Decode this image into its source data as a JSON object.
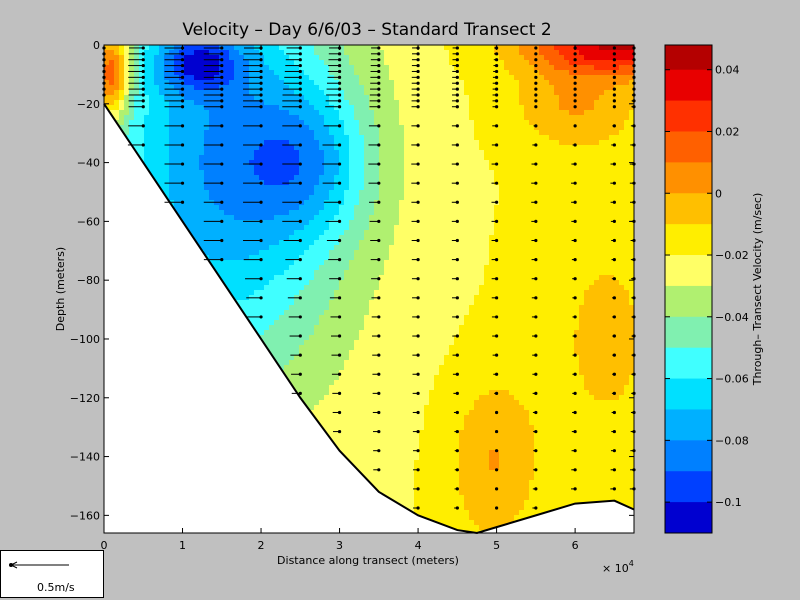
{
  "chart_data": {
    "type": "heatmap",
    "subtype": "filled-contour with velocity vectors",
    "title": "Velocity – Day 6/6/03 – Standard Transect 2",
    "xlabel": "Distance along transect (meters)",
    "ylabel": "Depth (meters)",
    "x_multiplier_label": "× 10",
    "x_multiplier_exponent": "4",
    "xlim": [
      0,
      6.75
    ],
    "ylim": [
      -166,
      0
    ],
    "x_ticks": [
      "0",
      "1",
      "2",
      "3",
      "4",
      "5",
      "6"
    ],
    "y_ticks": [
      "0",
      "−20",
      "−40",
      "−60",
      "−80",
      "−100",
      "−120",
      "−140",
      "−160"
    ],
    "colorbar": {
      "label": "Through– Transect Velocity (m/sec)",
      "range": [
        -0.11,
        0.048
      ],
      "ticks": [
        "0.04",
        "0.02",
        "0",
        "−0.02",
        "−0.04",
        "−0.06",
        "−0.08",
        "−0.1"
      ],
      "tick_values": [
        0.04,
        0.02,
        0,
        -0.02,
        -0.04,
        -0.06,
        -0.08,
        -0.1
      ],
      "levels": [
        {
          "min": 0.04,
          "color": "#b40000"
        },
        {
          "min": 0.03,
          "color": "#e80000"
        },
        {
          "min": 0.02,
          "color": "#ff3000"
        },
        {
          "min": 0.01,
          "color": "#ff6000"
        },
        {
          "min": 0.0,
          "color": "#ff9000"
        },
        {
          "min": -0.01,
          "color": "#ffbf00"
        },
        {
          "min": -0.02,
          "color": "#ffee00"
        },
        {
          "min": -0.03,
          "color": "#ffff66"
        },
        {
          "min": -0.04,
          "color": "#b0f070"
        },
        {
          "min": -0.05,
          "color": "#80f0b0"
        },
        {
          "min": -0.06,
          "color": "#40ffff"
        },
        {
          "min": -0.07,
          "color": "#00e0ff"
        },
        {
          "min": -0.08,
          "color": "#00b0ff"
        },
        {
          "min": -0.09,
          "color": "#0080ff"
        },
        {
          "min": -0.1,
          "color": "#0040ff"
        },
        {
          "min": -0.11,
          "color": "#0000d0"
        }
      ]
    },
    "bathymetry": {
      "distance_x1e4_m": [
        0,
        0.5,
        1.0,
        1.5,
        2.0,
        2.5,
        3.0,
        3.5,
        4.0,
        4.5,
        4.75,
        5.0,
        5.5,
        6.0,
        6.5,
        6.75
      ],
      "depth_m": [
        -20,
        -40,
        -60,
        -80,
        -100,
        -120,
        -138,
        -152,
        -160,
        -165,
        -166,
        -164,
        -160,
        -156,
        -155,
        -158
      ]
    },
    "stations_x1e4_m": [
      0,
      0.5,
      1.0,
      1.5,
      2.0,
      2.5,
      3.0,
      3.5,
      4.0,
      4.5,
      5.0,
      5.5,
      6.0,
      6.5,
      6.75
    ],
    "velocity_field_m_per_s": {
      "description": "approximate through-transect velocity read from contour colors",
      "core_min": -0.11,
      "core_location": {
        "distance_x1e4_m": 1.1,
        "depth_m": -7
      },
      "max_positive": 0.045,
      "max_positive_location": {
        "distance_x1e4_m": 6.6,
        "depth_m": -2
      }
    }
  },
  "scale_legend": {
    "label": "0.5m/s",
    "reference_speed": 0.5
  }
}
